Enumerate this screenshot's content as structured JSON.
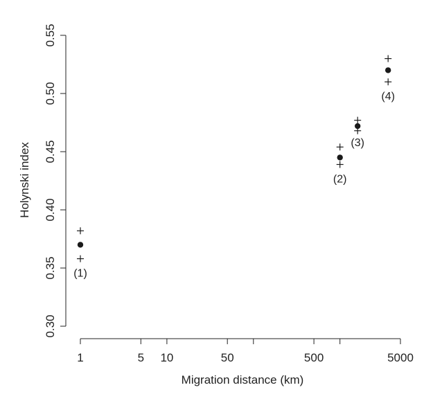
{
  "chart_data": {
    "type": "scatter",
    "title": "",
    "xlabel": "Migration distance (km)",
    "ylabel": "Holynski index",
    "x_scale": "log",
    "xlim": [
      1,
      5000
    ],
    "ylim": [
      0.3,
      0.55
    ],
    "x_ticks": [
      1,
      5,
      10,
      50,
      100,
      500,
      1000,
      5000
    ],
    "x_tick_labels": [
      "1",
      "5",
      "10",
      "50",
      "",
      "500",
      "",
      "5000"
    ],
    "y_ticks": [
      0.3,
      0.35,
      0.4,
      0.45,
      0.5,
      0.55
    ],
    "y_tick_labels": [
      "0.30",
      "0.35",
      "0.40",
      "0.45",
      "0.50",
      "0.55"
    ],
    "grid": false,
    "points": [
      {
        "label": "(1)",
        "x": 1,
        "y": 0.37,
        "upper": 0.382,
        "lower": 0.358
      },
      {
        "label": "(2)",
        "x": 1000,
        "y": 0.445,
        "upper": 0.454,
        "lower": 0.439
      },
      {
        "label": "(3)",
        "x": 1600,
        "y": 0.472,
        "upper": 0.477,
        "lower": 0.468
      },
      {
        "label": "(4)",
        "x": 3600,
        "y": 0.52,
        "upper": 0.53,
        "lower": 0.51
      }
    ]
  }
}
